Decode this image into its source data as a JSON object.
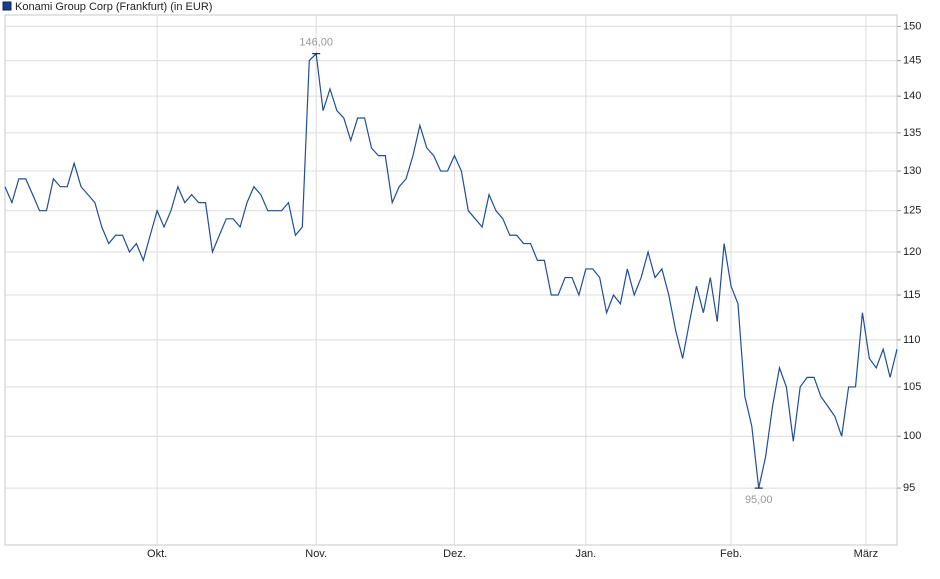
{
  "chart_data": {
    "type": "line",
    "series": [
      {
        "name": "Konami Group Corp (Frankfurt) (in EUR)",
        "color": "#1f4e99",
        "values": [
          128,
          126,
          129,
          129,
          127,
          125,
          125,
          129,
          128,
          128,
          131,
          128,
          127,
          126,
          123,
          121,
          122,
          122,
          120,
          121,
          119,
          122,
          125,
          123,
          125,
          128,
          126,
          127,
          126,
          126,
          120,
          122,
          124,
          124,
          123,
          126,
          128,
          127,
          125,
          125,
          125,
          126,
          122,
          123,
          145,
          146,
          138,
          141,
          138,
          137,
          134,
          137,
          137,
          133,
          132,
          132,
          126,
          128,
          129,
          132,
          136,
          133,
          132,
          130,
          130,
          132,
          130,
          125,
          124,
          123,
          127,
          125,
          124,
          122,
          122,
          121,
          121,
          119,
          119,
          115,
          115,
          117,
          117,
          115,
          118,
          118,
          117,
          113,
          115,
          114,
          118,
          115,
          117,
          120,
          117,
          118,
          115,
          111,
          108,
          112,
          116,
          113,
          117,
          112,
          121,
          116,
          114,
          104,
          101,
          95,
          98,
          103,
          107,
          105,
          99.5,
          105,
          106,
          106,
          104,
          103,
          102,
          100,
          105,
          105,
          113,
          108,
          107,
          109,
          106,
          109
        ],
        "value_labels": [
          null,
          null,
          null,
          null,
          null,
          null,
          null,
          null,
          null,
          null,
          null,
          null,
          null,
          null,
          null,
          null,
          null,
          null,
          null,
          null,
          null,
          null,
          null,
          null,
          null,
          null,
          null,
          null,
          null,
          null,
          null,
          null,
          null,
          null,
          null,
          null,
          null,
          null,
          null,
          null,
          null,
          null,
          null,
          null,
          null,
          "146,00",
          null,
          null,
          null,
          null,
          null,
          null,
          null,
          null,
          null,
          null,
          null,
          null,
          null,
          null,
          null,
          null,
          null,
          null,
          null,
          null,
          null,
          null,
          null,
          null,
          null,
          null,
          null,
          null,
          null,
          null,
          null,
          null,
          null,
          null,
          null,
          null,
          null,
          null,
          null,
          null,
          null,
          null,
          null,
          null,
          null,
          null,
          null,
          null,
          null,
          null,
          null,
          null,
          null,
          null,
          null,
          null,
          null,
          null,
          null,
          null,
          null,
          null,
          null,
          "95,00",
          null,
          null,
          null,
          null,
          null,
          null,
          null,
          null,
          null,
          null,
          null,
          null,
          null,
          null,
          null,
          null,
          null,
          null,
          null,
          null
        ]
      }
    ],
    "xlim": [
      0,
      129
    ],
    "xticks": [
      {
        "value": 22,
        "label": "Okt."
      },
      {
        "value": 45,
        "label": "Nov."
      },
      {
        "value": 65,
        "label": "Dez."
      },
      {
        "value": 84,
        "label": "Jan."
      },
      {
        "value": 105,
        "label": "Feb."
      },
      {
        "value": 124.5,
        "label": "März"
      }
    ],
    "ylim": [
      89.8,
      151.7
    ],
    "yticks": [
      95,
      100,
      105,
      110,
      115,
      120,
      125,
      130,
      135,
      140,
      145,
      150
    ],
    "log_scale": true,
    "grid": true,
    "legend": "top-left"
  }
}
